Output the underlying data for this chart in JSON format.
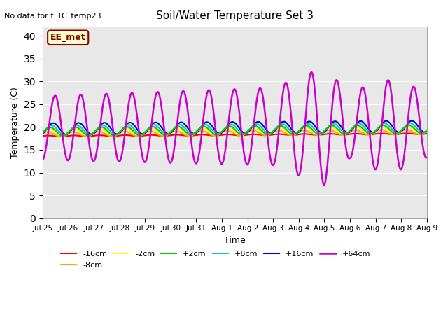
{
  "title": "Soil/Water Temperature Set 3",
  "xlabel": "Time",
  "ylabel": "Temperature (C)",
  "subtitle": "No data for f_TC_temp23",
  "annotation": "EE_met",
  "ylim": [
    0,
    42
  ],
  "yticks": [
    0,
    5,
    10,
    15,
    20,
    25,
    30,
    35,
    40
  ],
  "plot_bg_color": "#e8e8e8",
  "series": {
    "-16cm": {
      "color": "#ff0000",
      "lw": 1.5
    },
    "-8cm": {
      "color": "#ffa500",
      "lw": 1.5
    },
    "-2cm": {
      "color": "#ffff00",
      "lw": 1.5
    },
    "+2cm": {
      "color": "#00cc00",
      "lw": 1.5
    },
    "+8cm": {
      "color": "#00cccc",
      "lw": 1.5
    },
    "+16cm": {
      "color": "#0000cc",
      "lw": 1.5
    },
    "+64cm": {
      "color": "#cc00cc",
      "lw": 1.8
    }
  },
  "x_tick_labels": [
    "Jul 25",
    "Jul 26",
    "Jul 27",
    "Jul 28",
    "Jul 29",
    "Jul 30",
    "Jul 31",
    "Aug 1",
    "Aug 2",
    "Aug 3",
    "Aug 4",
    "Aug 5",
    "Aug 6",
    "Aug 7",
    "Aug 8",
    "Aug 9"
  ],
  "n_days": 15,
  "pts_per_day": 48,
  "base_temp": 18.0,
  "trend": 0.035
}
